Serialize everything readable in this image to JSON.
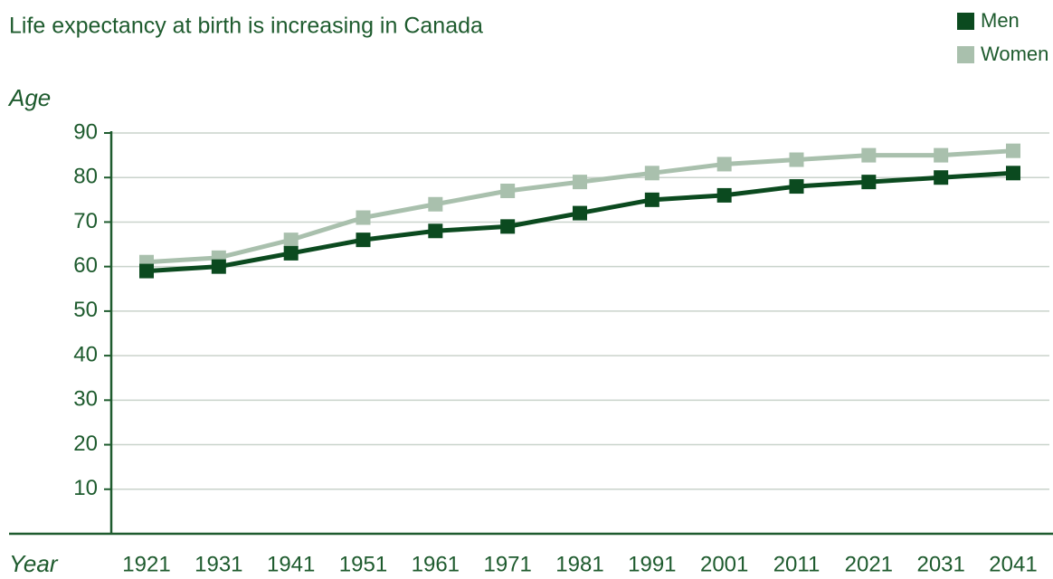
{
  "chart_data": {
    "type": "line",
    "title": "Life expectancy at birth is increasing in Canada",
    "y_label": "Age",
    "x_label": "Year",
    "categories": [
      "1921",
      "1931",
      "1941",
      "1951",
      "1961",
      "1971",
      "1981",
      "1991",
      "2001",
      "2011",
      "2021",
      "2031",
      "2041"
    ],
    "series": [
      {
        "name": "Men",
        "color": "#0b4a1f",
        "values": [
          59,
          60,
          63,
          66,
          68,
          69,
          72,
          75,
          76,
          78,
          79,
          80,
          81
        ]
      },
      {
        "name": "Women",
        "color": "#a9c0ad",
        "values": [
          61,
          62,
          66,
          71,
          74,
          77,
          79,
          81,
          83,
          84,
          85,
          85,
          86
        ]
      }
    ],
    "ylim": [
      0,
      90
    ],
    "yticks": [
      10,
      20,
      30,
      40,
      50,
      60,
      70,
      80,
      90
    ],
    "grid": true,
    "legend": "top-right"
  }
}
